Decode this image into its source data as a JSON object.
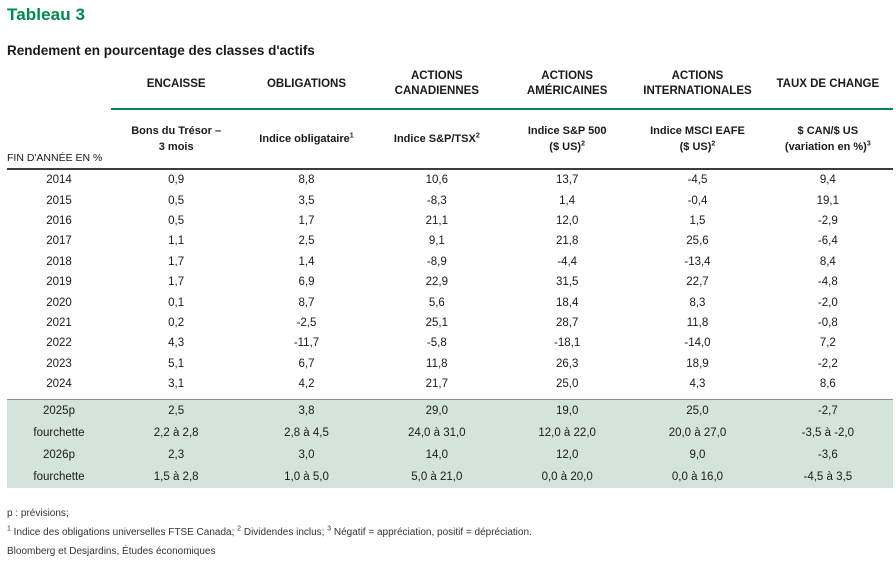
{
  "title": "Tableau 3",
  "subtitle": "Rendement en pourcentage des classes d'actifs",
  "colors": {
    "accent_green": "#00874e",
    "forecast_highlight": "#d5e4db",
    "header_rule_dark": "#3d3d3d",
    "separator_gray": "#8e8e8e"
  },
  "table": {
    "row_label_header": "FIN D'ANNÉE EN %",
    "columns": [
      {
        "group": "ENCAISSE",
        "sub_lines": [
          {
            "text": "Bons du Trésor –",
            "sup": ""
          },
          {
            "text": "3 mois",
            "sup": ""
          }
        ]
      },
      {
        "group": "OBLIGATIONS",
        "sub_lines": [
          {
            "text": "Indice obligataire",
            "sup": "1"
          }
        ]
      },
      {
        "group": "ACTIONS CANADIENNES",
        "sub_lines": [
          {
            "text": "Indice S&P/TSX",
            "sup": "2"
          }
        ]
      },
      {
        "group": "ACTIONS AMÉRICAINES",
        "sub_lines": [
          {
            "text": "Indice S&P 500",
            "sup": ""
          },
          {
            "text": "($ US)",
            "sup": "2"
          }
        ]
      },
      {
        "group": "ACTIONS INTERNATIONALES",
        "sub_lines": [
          {
            "text": "Indice MSCI EAFE",
            "sup": ""
          },
          {
            "text": "($ US)",
            "sup": "2"
          }
        ]
      },
      {
        "group": "TAUX DE CHANGE",
        "sub_lines": [
          {
            "text": "$ CAN/$ US",
            "sup": ""
          },
          {
            "text": "(variation en %)",
            "sup": "3"
          }
        ]
      }
    ],
    "historical_rows": [
      {
        "label": "2014",
        "values": [
          "0,9",
          "8,8",
          "10,6",
          "13,7",
          "-4,5",
          "9,4"
        ]
      },
      {
        "label": "2015",
        "values": [
          "0,5",
          "3,5",
          "-8,3",
          "1,4",
          "-0,4",
          "19,1"
        ]
      },
      {
        "label": "2016",
        "values": [
          "0,5",
          "1,7",
          "21,1",
          "12,0",
          "1,5",
          "-2,9"
        ]
      },
      {
        "label": "2017",
        "values": [
          "1,1",
          "2,5",
          "9,1",
          "21,8",
          "25,6",
          "-6,4"
        ]
      },
      {
        "label": "2018",
        "values": [
          "1,7",
          "1,4",
          "-8,9",
          "-4,4",
          "-13,4",
          "8,4"
        ]
      },
      {
        "label": "2019",
        "values": [
          "1,7",
          "6,9",
          "22,9",
          "31,5",
          "22,7",
          "-4,8"
        ]
      },
      {
        "label": "2020",
        "values": [
          "0,1",
          "8,7",
          "5,6",
          "18,4",
          "8,3",
          "-2,0"
        ]
      },
      {
        "label": "2021",
        "values": [
          "0,2",
          "-2,5",
          "25,1",
          "28,7",
          "11,8",
          "-0,8"
        ]
      },
      {
        "label": "2022",
        "values": [
          "4,3",
          "-11,7",
          "-5,8",
          "-18,1",
          "-14,0",
          "7,2"
        ]
      },
      {
        "label": "2023",
        "values": [
          "5,1",
          "6,7",
          "11,8",
          "26,3",
          "18,9",
          "-2,2"
        ]
      },
      {
        "label": "2024",
        "values": [
          "3,1",
          "4,2",
          "21,7",
          "25,0",
          "4,3",
          "8,6"
        ]
      }
    ],
    "forecast_rows": [
      {
        "label": "2025p",
        "values": [
          "2,5",
          "3,8",
          "29,0",
          "19,0",
          "25,0",
          "-2,7"
        ]
      },
      {
        "label": "fourchette",
        "values": [
          "2,2 à 2,8",
          "2,8 à 4,5",
          "24,0 à 31,0",
          "12,0 à 22,0",
          "20,0 à 27,0",
          "-3,5 à -2,0"
        ]
      },
      {
        "label": "2026p",
        "values": [
          "2,3",
          "3,0",
          "14,0",
          "12,0",
          "9,0",
          "-3,6"
        ]
      },
      {
        "label": "fourchette",
        "values": [
          "1,5 à 2,8",
          "1,0 à 5,0",
          "5,0 à 21,0",
          "0,0 à 20,0",
          "0,0 à 16,0",
          "-4,5 à 3,5"
        ]
      }
    ]
  },
  "footnotes": {
    "line1": "p : prévisions;",
    "definitions": [
      {
        "sup": "1",
        "text": " Indice des obligations universelles FTSE Canada; "
      },
      {
        "sup": "2",
        "text": " Dividendes inclus; "
      },
      {
        "sup": "3",
        "text": " Négatif = appréciation, positif = dépréciation."
      }
    ],
    "source": "Bloomberg et Desjardins, Études économiques"
  }
}
